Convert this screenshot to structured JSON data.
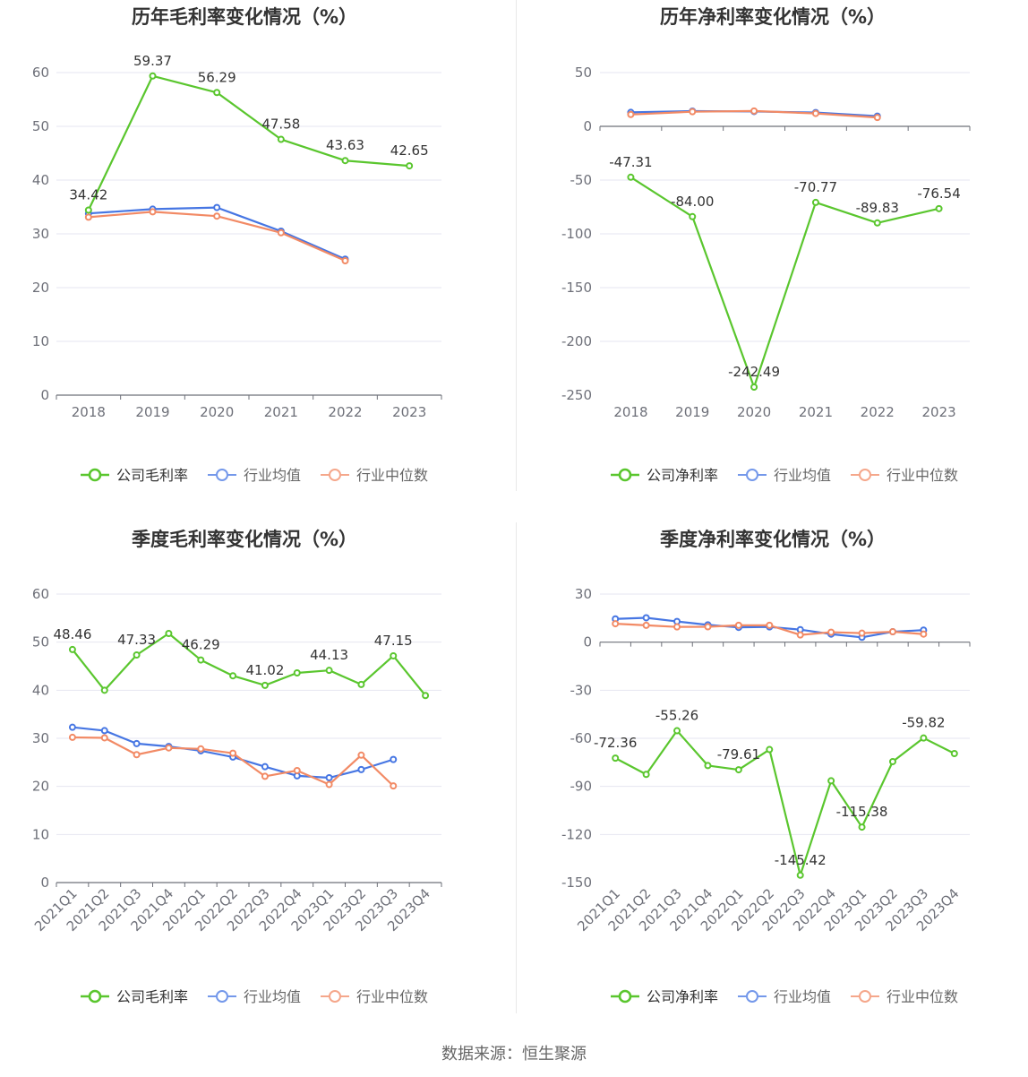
{
  "source": "数据来源：恒生聚源",
  "colors": {
    "company": "#5ac62e",
    "avg": "#4676e3",
    "median": "#f28a65"
  },
  "chart_data": [
    {
      "type": "line",
      "title": "历年毛利率变化情况（%）",
      "categories": [
        "2018",
        "2019",
        "2020",
        "2021",
        "2022",
        "2023"
      ],
      "ylim": [
        0,
        60
      ],
      "yticks": [
        0,
        10,
        20,
        30,
        40,
        50,
        60
      ],
      "grid": true,
      "legend_position": "bottom-center",
      "series": [
        {
          "name": "公司毛利率",
          "key": "company",
          "values": [
            34.42,
            59.37,
            56.29,
            47.58,
            43.63,
            42.65
          ],
          "labels": [
            "34.42",
            "59.37",
            "56.29",
            "47.58",
            "43.63",
            "42.65"
          ]
        },
        {
          "name": "行业均值",
          "key": "avg",
          "values": [
            33.8,
            34.6,
            34.9,
            30.5,
            25.3,
            null
          ]
        },
        {
          "name": "行业中位数",
          "key": "median",
          "values": [
            33.1,
            34.1,
            33.3,
            30.2,
            25.0,
            null
          ]
        }
      ]
    },
    {
      "type": "line",
      "title": "历年净利率变化情况（%）",
      "categories": [
        "2018",
        "2019",
        "2020",
        "2021",
        "2022",
        "2023"
      ],
      "ylim": [
        -250,
        50
      ],
      "yticks": [
        -250,
        -200,
        -150,
        -100,
        -50,
        0,
        50
      ],
      "grid": true,
      "legend_position": "bottom-center",
      "series": [
        {
          "name": "公司净利率",
          "key": "company",
          "values": [
            -47.31,
            -84.0,
            -242.49,
            -70.77,
            -89.83,
            -76.54
          ],
          "labels": [
            "-47.31",
            "-84.00",
            "-242.49",
            "-70.77",
            "-89.83",
            "-76.54"
          ]
        },
        {
          "name": "行业均值",
          "key": "avg",
          "values": [
            13.0,
            14.2,
            13.8,
            12.8,
            9.5,
            null
          ]
        },
        {
          "name": "行业中位数",
          "key": "median",
          "values": [
            11.0,
            13.6,
            14.3,
            12.0,
            8.2,
            null
          ]
        }
      ]
    },
    {
      "type": "line",
      "title": "季度毛利率变化情况（%）",
      "categories": [
        "2021Q1",
        "2021Q2",
        "2021Q3",
        "2021Q4",
        "2022Q1",
        "2022Q2",
        "2022Q3",
        "2022Q4",
        "2023Q1",
        "2023Q2",
        "2023Q3",
        "2023Q4"
      ],
      "ylim": [
        0,
        60
      ],
      "yticks": [
        0,
        10,
        20,
        30,
        40,
        50,
        60
      ],
      "grid": true,
      "legend_position": "bottom-center",
      "series": [
        {
          "name": "公司毛利率",
          "key": "company",
          "values": [
            48.46,
            40.0,
            47.33,
            51.8,
            46.29,
            43.0,
            41.02,
            43.6,
            44.13,
            41.2,
            47.15,
            38.9
          ],
          "labels": [
            "48.46",
            "",
            "47.33",
            "",
            "46.29",
            "",
            "41.02",
            "",
            "44.13",
            "",
            "47.15",
            ""
          ]
        },
        {
          "name": "行业均值",
          "key": "avg",
          "values": [
            32.3,
            31.6,
            28.9,
            28.3,
            27.4,
            26.1,
            24.1,
            22.2,
            21.8,
            23.5,
            25.6,
            null
          ]
        },
        {
          "name": "行业中位数",
          "key": "median",
          "values": [
            30.2,
            30.1,
            26.6,
            28.0,
            27.8,
            26.9,
            22.1,
            23.3,
            20.4,
            26.5,
            20.1,
            null
          ]
        }
      ]
    },
    {
      "type": "line",
      "title": "季度净利率变化情况（%）",
      "categories": [
        "2021Q1",
        "2021Q2",
        "2021Q3",
        "2021Q4",
        "2022Q1",
        "2022Q2",
        "2022Q3",
        "2022Q4",
        "2023Q1",
        "2023Q2",
        "2023Q3",
        "2023Q4"
      ],
      "ylim": [
        -150,
        30
      ],
      "yticks": [
        -150,
        -120,
        -90,
        -60,
        -30,
        0,
        30
      ],
      "grid": true,
      "legend_position": "bottom-center",
      "series": [
        {
          "name": "公司净利率",
          "key": "company",
          "values": [
            -72.36,
            -82.5,
            -55.26,
            -77.0,
            -79.61,
            -67.0,
            -145.42,
            -86.5,
            -115.38,
            -74.5,
            -59.82,
            -69.5
          ],
          "labels": [
            "-72.36",
            "",
            "-55.26",
            "",
            "-79.61",
            "",
            "-145.42",
            "",
            "-115.38",
            "",
            "-59.82",
            ""
          ]
        },
        {
          "name": "行业均值",
          "key": "avg",
          "values": [
            14.5,
            15.2,
            12.9,
            10.8,
            9.2,
            9.5,
            7.8,
            5.0,
            3.0,
            6.5,
            7.5,
            null
          ]
        },
        {
          "name": "行业中位数",
          "key": "median",
          "values": [
            11.5,
            10.5,
            9.5,
            9.6,
            10.5,
            10.5,
            4.5,
            6.2,
            5.6,
            6.5,
            5.0,
            null
          ]
        }
      ]
    }
  ]
}
